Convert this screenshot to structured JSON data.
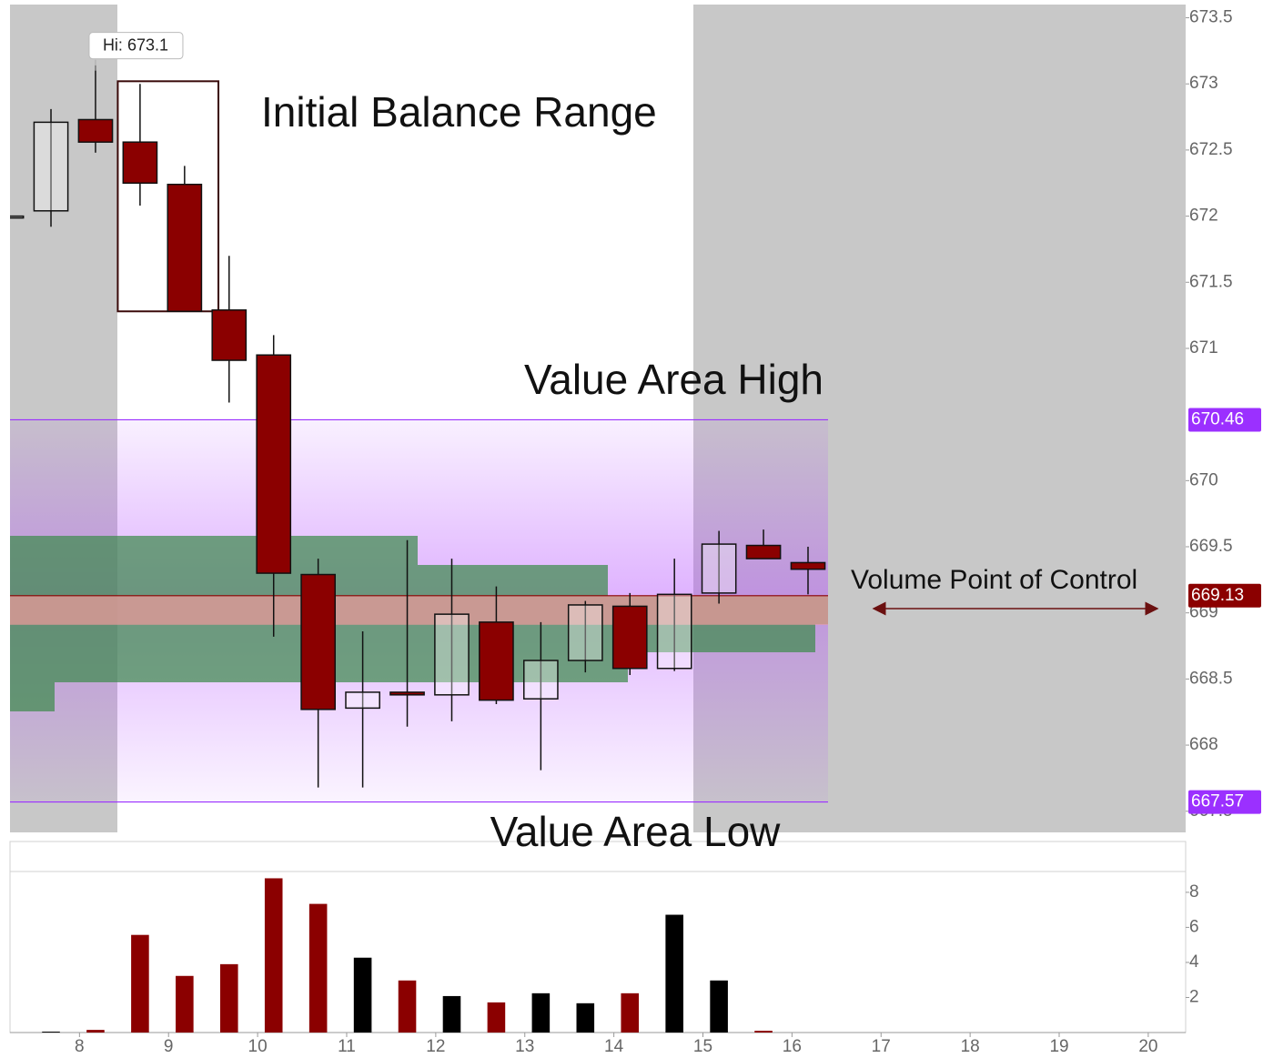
{
  "chart_data": {
    "type": "candlestick",
    "x": [
      7.18,
      7.68,
      8.18,
      8.68,
      9.18,
      9.68,
      10.18,
      10.68,
      11.18,
      11.68,
      12.18,
      12.68,
      13.18,
      13.68,
      14.18,
      14.68,
      15.18,
      15.68,
      16.18
    ],
    "open": [
      672.0,
      672.04,
      672.73,
      672.56,
      672.24,
      671.29,
      670.95,
      669.29,
      668.28,
      668.4,
      668.38,
      668.93,
      668.35,
      668.64,
      669.05,
      668.58,
      669.15,
      669.51,
      669.38
    ],
    "high": [
      672.0,
      672.81,
      673.14,
      673.0,
      672.38,
      671.7,
      671.1,
      669.41,
      668.86,
      669.55,
      669.41,
      669.2,
      668.93,
      669.09,
      669.15,
      669.41,
      669.62,
      669.63,
      669.5
    ],
    "low": [
      672.0,
      671.92,
      672.48,
      672.08,
      671.28,
      670.59,
      668.82,
      667.68,
      667.68,
      668.14,
      668.18,
      668.31,
      667.81,
      668.55,
      668.53,
      668.56,
      669.07,
      669.41,
      669.14
    ],
    "close": [
      672.0,
      672.71,
      672.56,
      672.25,
      671.28,
      670.91,
      669.3,
      668.27,
      668.4,
      668.38,
      668.99,
      668.34,
      668.64,
      669.06,
      668.58,
      669.14,
      669.52,
      669.41,
      669.33
    ],
    "volume": [
      null,
      0.05,
      0.15,
      5.57,
      3.23,
      3.9,
      8.8,
      7.34,
      4.27,
      2.97,
      2.08,
      1.72,
      2.24,
      1.67,
      2.24,
      6.72,
      2.97,
      0.1,
      0
    ],
    "up_color": "#000000",
    "down_color": "#8b0000",
    "xlim": [
      7.22,
      20.42
    ],
    "xticks": [
      8,
      9,
      10,
      11,
      12,
      13,
      14,
      15,
      16,
      17,
      18,
      19,
      20
    ],
    "ylim": [
      667.34,
      673.6
    ],
    "yticks": [
      673.5,
      673,
      672.5,
      672,
      671.5,
      671,
      670,
      669.5,
      669,
      668.5,
      668,
      667.5
    ],
    "volume_ylim": [
      0,
      10.9
    ],
    "volume_yticks": [
      2,
      4,
      6,
      8
    ],
    "levels": [
      {
        "name": "Value Area High",
        "value": 670.46,
        "color": "#9b30ff"
      },
      {
        "name": "Volume Point of Control",
        "value": 669.13,
        "color": "#8b0000"
      },
      {
        "name": "Value Area Low",
        "value": 667.57,
        "color": "#9b30ff"
      }
    ],
    "initial_balance": {
      "label": "Initial Balance Range",
      "high": 673.02,
      "low": 671.28,
      "start": 8.43,
      "end": 9.56
    },
    "high_callout": {
      "label": "Hi: 673.1",
      "value": 673.1
    }
  }
}
